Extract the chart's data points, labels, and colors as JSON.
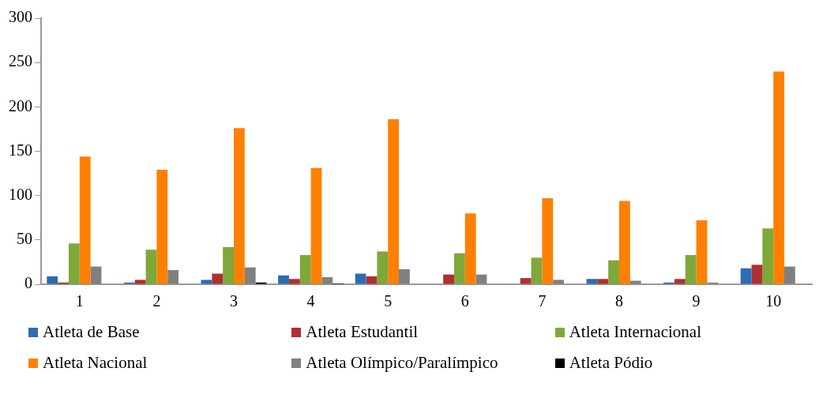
{
  "chart_data": {
    "type": "bar",
    "categories": [
      "1",
      "2",
      "3",
      "4",
      "5",
      "6",
      "7",
      "8",
      "9",
      "10"
    ],
    "series": [
      {
        "name": "Atleta de Base",
        "color": "#2e6bb5",
        "values": [
          9,
          2,
          5,
          10,
          12,
          0,
          0,
          6,
          2,
          18
        ]
      },
      {
        "name": "Atleta Estudantil",
        "color": "#b03030",
        "values": [
          2,
          5,
          12,
          6,
          9,
          11,
          7,
          6,
          6,
          22
        ]
      },
      {
        "name": "Atleta Internacional",
        "color": "#7ea83a",
        "values": [
          46,
          39,
          42,
          33,
          37,
          35,
          30,
          27,
          33,
          63
        ]
      },
      {
        "name": "Atleta Nacional",
        "color": "#ff8000",
        "values": [
          144,
          129,
          176,
          131,
          186,
          80,
          97,
          94,
          72,
          240
        ]
      },
      {
        "name": "Atleta Olímpico/Paralímpico",
        "color": "#808080",
        "values": [
          20,
          16,
          19,
          8,
          17,
          11,
          5,
          4,
          2,
          20
        ]
      },
      {
        "name": "Atleta Pódio",
        "color": "#000000",
        "values": [
          0,
          0,
          2,
          1,
          0,
          0,
          0,
          0,
          0,
          0
        ]
      }
    ],
    "ylim": [
      0,
      300
    ],
    "yticks": [
      0,
      50,
      100,
      150,
      200,
      250,
      300
    ],
    "grid": false,
    "legend": "bottom"
  }
}
